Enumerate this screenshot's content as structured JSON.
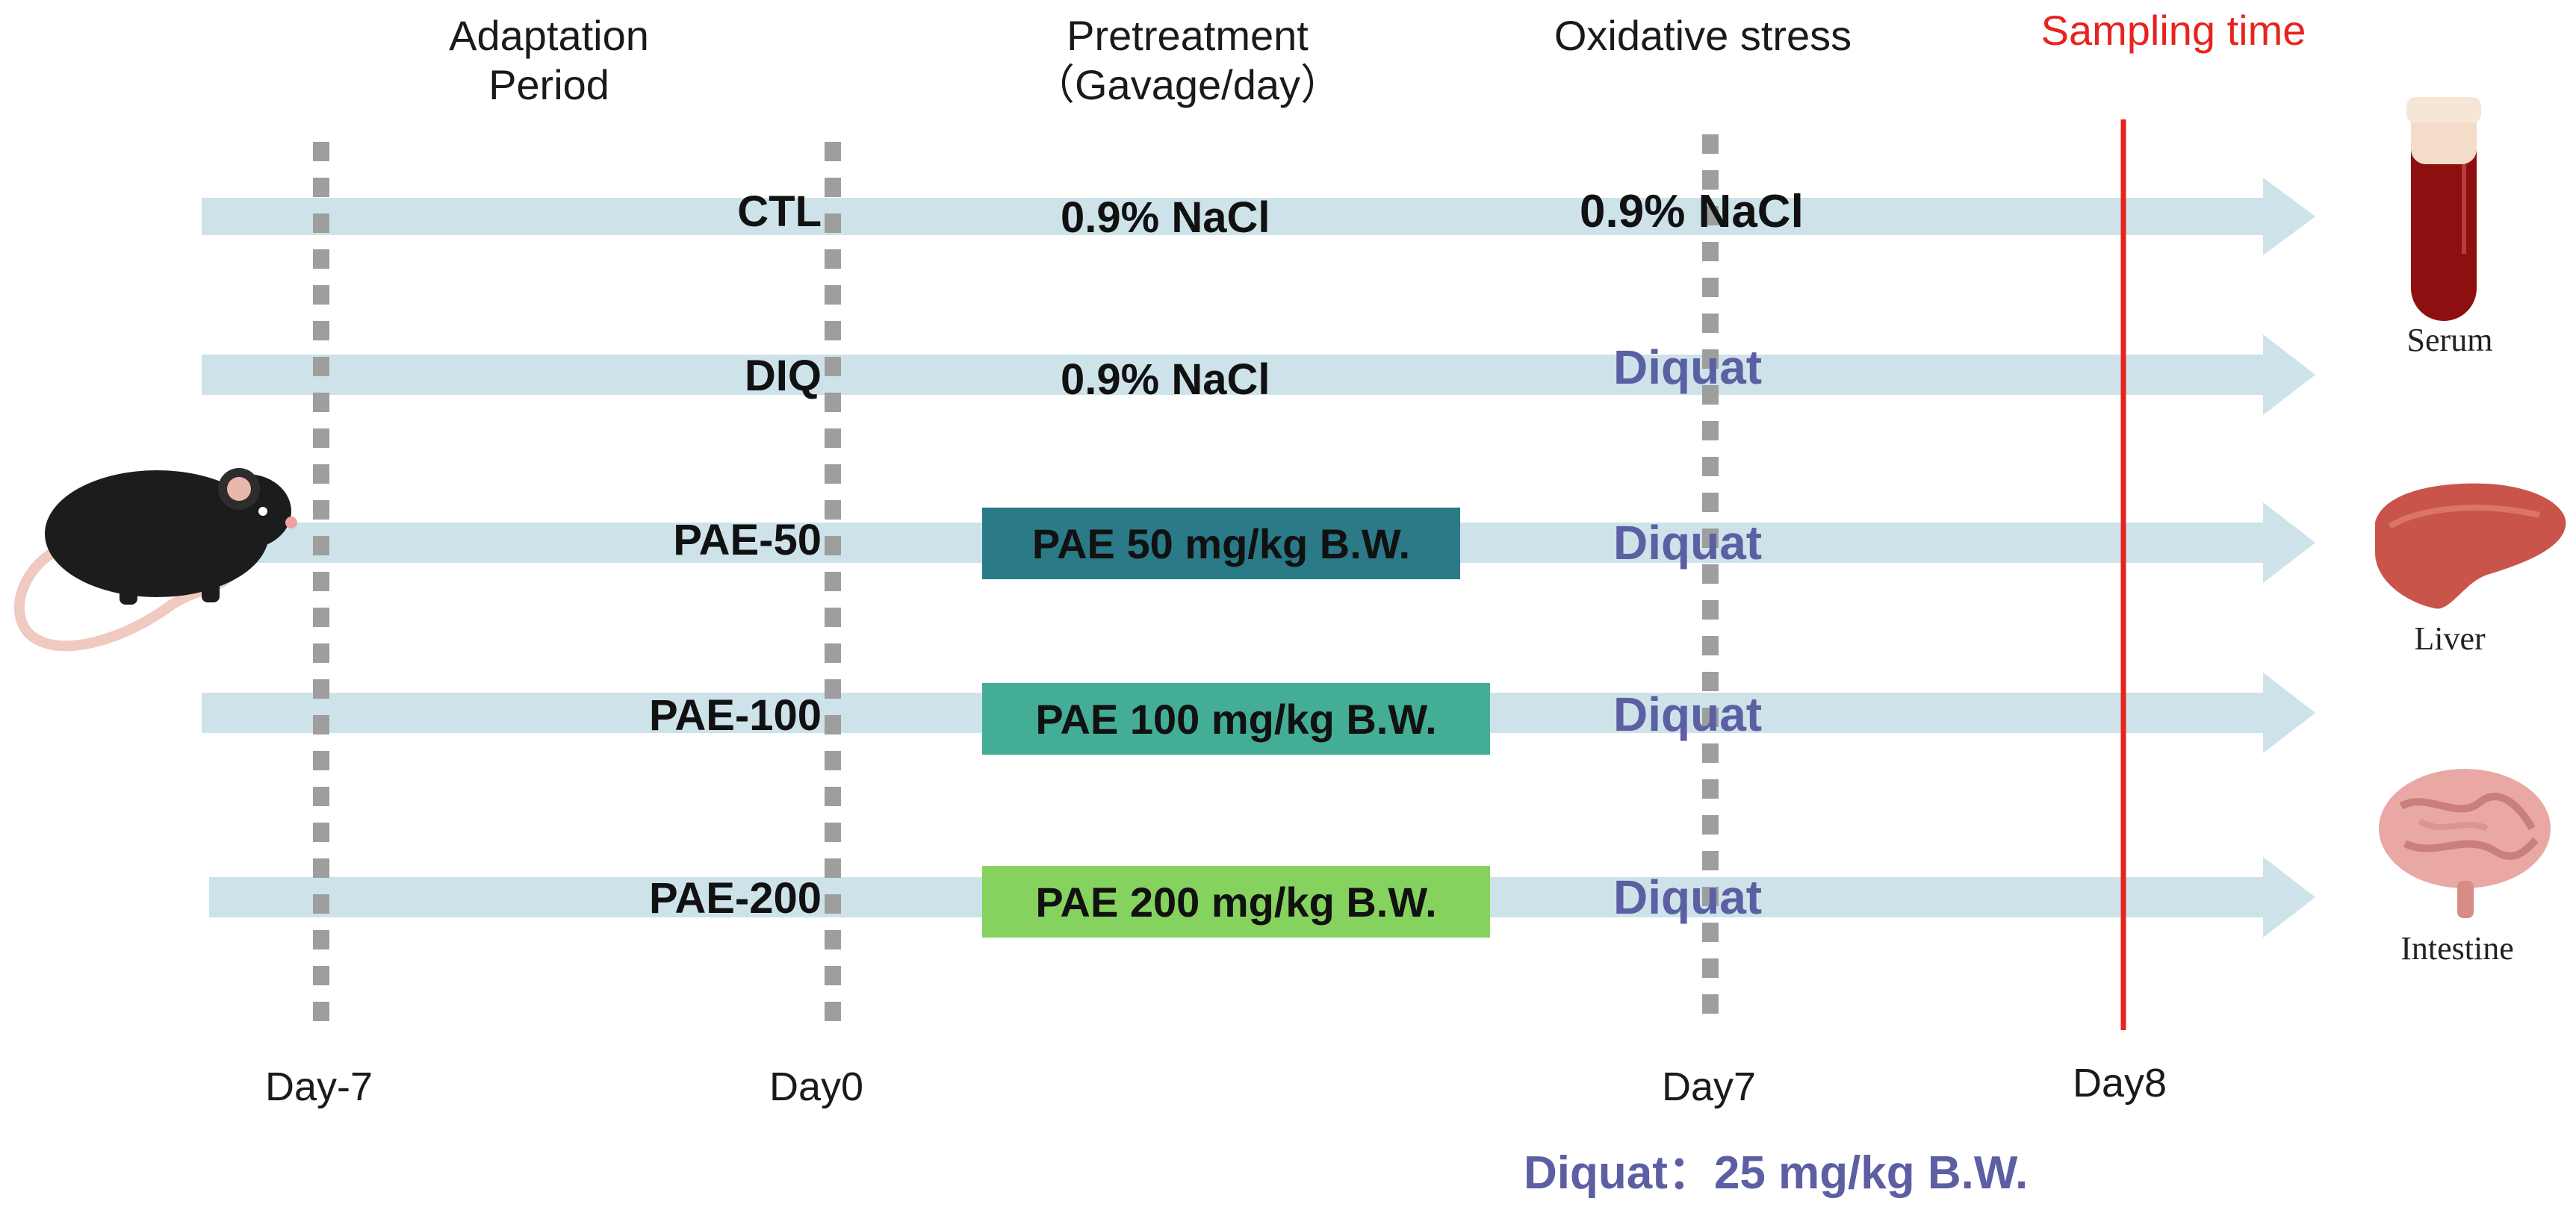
{
  "headers": {
    "adaptation_line1": "Adaptation",
    "adaptation_line2": "Period",
    "pretreatment_line1": "Pretreatment",
    "pretreatment_line2": "（Gavage/day）",
    "oxidative": "Oxidative stress",
    "sampling": "Sampling time"
  },
  "days": {
    "d_minus7": "Day-7",
    "d0": "Day0",
    "d7": "Day7",
    "d8": "Day8"
  },
  "groups": [
    {
      "label": "CTL",
      "pretreatment": "0.9% NaCl",
      "stress": "0.9% NaCl"
    },
    {
      "label": "DIQ",
      "pretreatment": "0.9% NaCl",
      "stress": "Diquat"
    },
    {
      "label": "PAE-50",
      "pretreatment": "PAE 50 mg/kg B.W.",
      "stress": "Diquat"
    },
    {
      "label": "PAE-100",
      "pretreatment": "PAE 100 mg/kg B.W.",
      "stress": "Diquat"
    },
    {
      "label": "PAE-200",
      "pretreatment": "PAE 200 mg/kg B.W.",
      "stress": "Diquat"
    }
  ],
  "samples": {
    "serum": "Serum",
    "liver": "Liver",
    "intestine": "Intestine"
  },
  "footnote": "Diquat：25 mg/kg B.W.",
  "colors": {
    "arrow": "#cde3e9",
    "pae50": "#2a7a88",
    "pae100": "#44ad96",
    "pae200": "#86d25f",
    "sampling_line": "#e8231f",
    "dashed": "#9e9e9e",
    "diquat_text": "#5d5fa3"
  },
  "icons": [
    "mouse-icon",
    "blood-tube-icon",
    "liver-icon",
    "intestine-icon"
  ]
}
